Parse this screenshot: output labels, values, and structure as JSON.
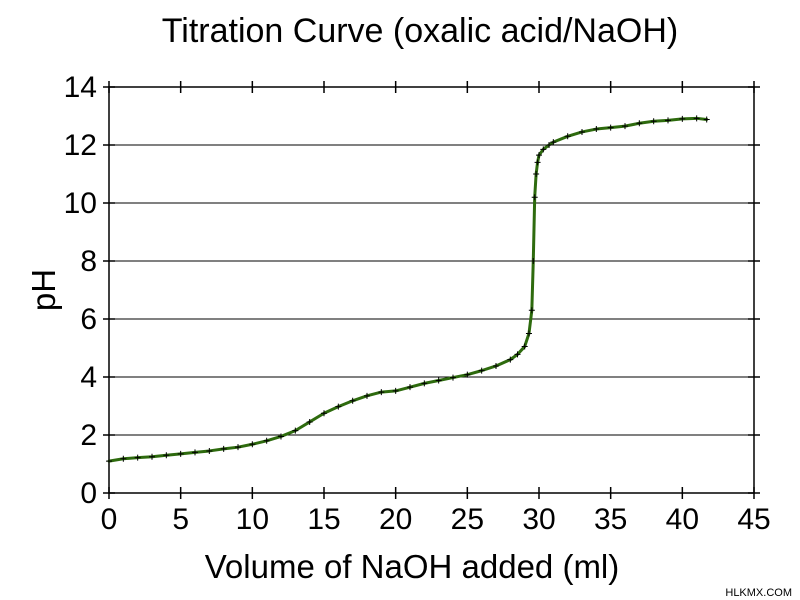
{
  "chart_data": {
    "type": "line",
    "title": "Titration Curve (oxalic acid/NaOH)",
    "xlabel": "Volume of NaOH added (ml)",
    "ylabel": "pH",
    "xlim": [
      0,
      45
    ],
    "ylim": [
      0,
      14
    ],
    "xticks": [
      "0",
      "5",
      "10",
      "15",
      "20",
      "25",
      "30",
      "35",
      "40",
      "45"
    ],
    "yticks": [
      "0",
      "2",
      "4",
      "6",
      "8",
      "10",
      "12",
      "14"
    ],
    "grid": "horizontal",
    "legend": "none",
    "colors": {
      "line": "#2e6b0e",
      "markers": "#000000",
      "grid": "#000000"
    },
    "series": [
      {
        "x": [
          0,
          1,
          2,
          3,
          4,
          5,
          6,
          7,
          8,
          9,
          10,
          11,
          12,
          13,
          14,
          15,
          16,
          17,
          18,
          19,
          20,
          21,
          22,
          23,
          24,
          25,
          26,
          27,
          28,
          28.5,
          29,
          29.3,
          29.5,
          29.6,
          29.7,
          29.8,
          29.9,
          30,
          30.3,
          30.7,
          31,
          32,
          33,
          34,
          35,
          36,
          37,
          38,
          39,
          40,
          41,
          41.7
        ],
        "y": [
          1.1,
          1.18,
          1.22,
          1.25,
          1.3,
          1.35,
          1.4,
          1.45,
          1.52,
          1.58,
          1.68,
          1.8,
          1.95,
          2.15,
          2.45,
          2.75,
          2.98,
          3.18,
          3.35,
          3.48,
          3.52,
          3.65,
          3.78,
          3.88,
          3.98,
          4.08,
          4.22,
          4.38,
          4.6,
          4.78,
          5.05,
          5.5,
          6.3,
          8.0,
          10.2,
          11.0,
          11.4,
          11.65,
          11.85,
          12.0,
          12.1,
          12.3,
          12.45,
          12.55,
          12.6,
          12.65,
          12.75,
          12.82,
          12.85,
          12.9,
          12.92,
          12.88
        ]
      }
    ]
  },
  "watermark": "HLKMX.COM"
}
